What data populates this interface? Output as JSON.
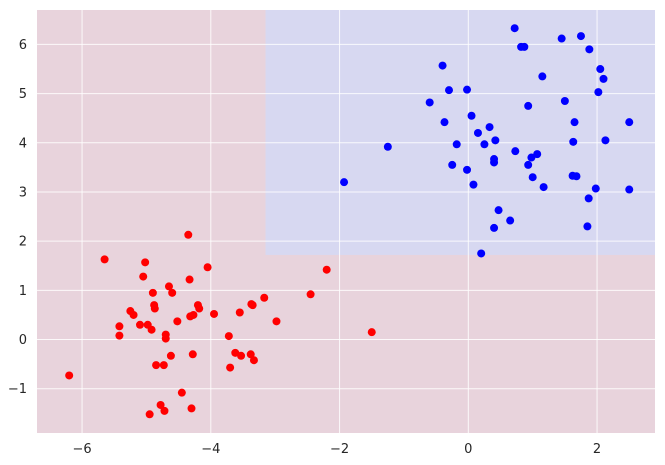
{
  "chart_data": {
    "type": "scatter",
    "title": "",
    "xlabel": "",
    "ylabel": "",
    "xlim": [
      -6.7,
      2.9
    ],
    "ylim": [
      -1.9,
      6.7
    ],
    "grid": true,
    "style": "seaborn-darkgrid",
    "xticks": [
      -6,
      -4,
      -2,
      0,
      2
    ],
    "yticks": [
      -1,
      0,
      1,
      2,
      3,
      4,
      5,
      6
    ],
    "xtick_labels": [
      "−6",
      "−4",
      "−2",
      "0",
      "2"
    ],
    "ytick_labels": [
      "−1",
      "0",
      "1",
      "2",
      "3",
      "4",
      "5",
      "6"
    ],
    "regions": [
      {
        "name": "class-0-region",
        "color": "#e8d3dc",
        "x": [
          -6.7,
          2.9
        ],
        "y": [
          -1.9,
          6.7
        ]
      },
      {
        "name": "class-1-region",
        "color": "#d7d8f1",
        "x": [
          -3.15,
          2.9
        ],
        "y": [
          1.72,
          6.7
        ]
      }
    ],
    "series": [
      {
        "color": "#ff0000",
        "points": [
          [
            -6.2,
            -0.73
          ],
          [
            -5.65,
            1.63
          ],
          [
            -5.42,
            0.27
          ],
          [
            -5.42,
            0.08
          ],
          [
            -5.25,
            0.58
          ],
          [
            -5.2,
            0.5
          ],
          [
            -5.1,
            0.3
          ],
          [
            -5.05,
            1.28
          ],
          [
            -5.02,
            1.57
          ],
          [
            -4.98,
            0.3
          ],
          [
            -4.95,
            -1.52
          ],
          [
            -4.92,
            0.2
          ],
          [
            -4.9,
            0.95
          ],
          [
            -4.88,
            0.7
          ],
          [
            -4.87,
            0.63
          ],
          [
            -4.85,
            -0.52
          ],
          [
            -4.78,
            -1.33
          ],
          [
            -4.73,
            -0.52
          ],
          [
            -4.72,
            -1.45
          ],
          [
            -4.7,
            0.1
          ],
          [
            -4.7,
            0.02
          ],
          [
            -4.65,
            1.08
          ],
          [
            -4.62,
            -0.33
          ],
          [
            -4.6,
            0.95
          ],
          [
            -4.52,
            0.37
          ],
          [
            -4.45,
            -1.08
          ],
          [
            -4.35,
            2.13
          ],
          [
            -4.33,
            1.22
          ],
          [
            -4.32,
            0.47
          ],
          [
            -4.3,
            -1.4
          ],
          [
            -4.28,
            -0.3
          ],
          [
            -4.27,
            0.5
          ],
          [
            -4.2,
            0.7
          ],
          [
            -4.18,
            0.63
          ],
          [
            -4.05,
            1.47
          ],
          [
            -3.95,
            0.52
          ],
          [
            -3.72,
            0.07
          ],
          [
            -3.7,
            -0.57
          ],
          [
            -3.62,
            -0.27
          ],
          [
            -3.55,
            0.55
          ],
          [
            -3.53,
            -0.33
          ],
          [
            -3.38,
            -0.3
          ],
          [
            -3.37,
            0.72
          ],
          [
            -3.35,
            0.7
          ],
          [
            -3.33,
            -0.42
          ],
          [
            -3.17,
            0.85
          ],
          [
            -2.98,
            0.37
          ],
          [
            -2.45,
            0.92
          ],
          [
            -2.2,
            1.42
          ],
          [
            -1.5,
            0.15
          ]
        ]
      },
      {
        "color": "#0000ff",
        "points": [
          [
            -1.93,
            3.2
          ],
          [
            -1.25,
            3.92
          ],
          [
            -0.6,
            4.82
          ],
          [
            -0.4,
            5.57
          ],
          [
            -0.37,
            4.42
          ],
          [
            -0.3,
            5.07
          ],
          [
            -0.25,
            3.55
          ],
          [
            -0.18,
            3.97
          ],
          [
            -0.02,
            5.08
          ],
          [
            -0.02,
            3.45
          ],
          [
            0.05,
            4.55
          ],
          [
            0.08,
            3.15
          ],
          [
            0.15,
            4.2
          ],
          [
            0.2,
            1.75
          ],
          [
            0.25,
            3.97
          ],
          [
            0.33,
            4.32
          ],
          [
            0.4,
            3.67
          ],
          [
            0.4,
            3.6
          ],
          [
            0.4,
            2.27
          ],
          [
            0.42,
            4.05
          ],
          [
            0.47,
            2.63
          ],
          [
            0.65,
            2.42
          ],
          [
            0.72,
            6.33
          ],
          [
            0.73,
            3.83
          ],
          [
            0.82,
            5.95
          ],
          [
            0.87,
            5.95
          ],
          [
            0.93,
            4.75
          ],
          [
            0.93,
            3.55
          ],
          [
            0.98,
            3.7
          ],
          [
            1.0,
            3.3
          ],
          [
            1.07,
            3.77
          ],
          [
            1.15,
            5.35
          ],
          [
            1.17,
            3.1
          ],
          [
            1.45,
            6.12
          ],
          [
            1.5,
            4.85
          ],
          [
            1.62,
            3.33
          ],
          [
            1.63,
            4.02
          ],
          [
            1.65,
            4.42
          ],
          [
            1.68,
            3.32
          ],
          [
            1.75,
            6.17
          ],
          [
            1.85,
            2.3
          ],
          [
            1.87,
            2.87
          ],
          [
            1.88,
            5.9
          ],
          [
            1.98,
            3.07
          ],
          [
            2.02,
            5.03
          ],
          [
            2.05,
            5.5
          ],
          [
            2.1,
            5.3
          ],
          [
            2.13,
            4.05
          ],
          [
            2.5,
            4.42
          ],
          [
            2.5,
            3.05
          ]
        ]
      }
    ]
  }
}
